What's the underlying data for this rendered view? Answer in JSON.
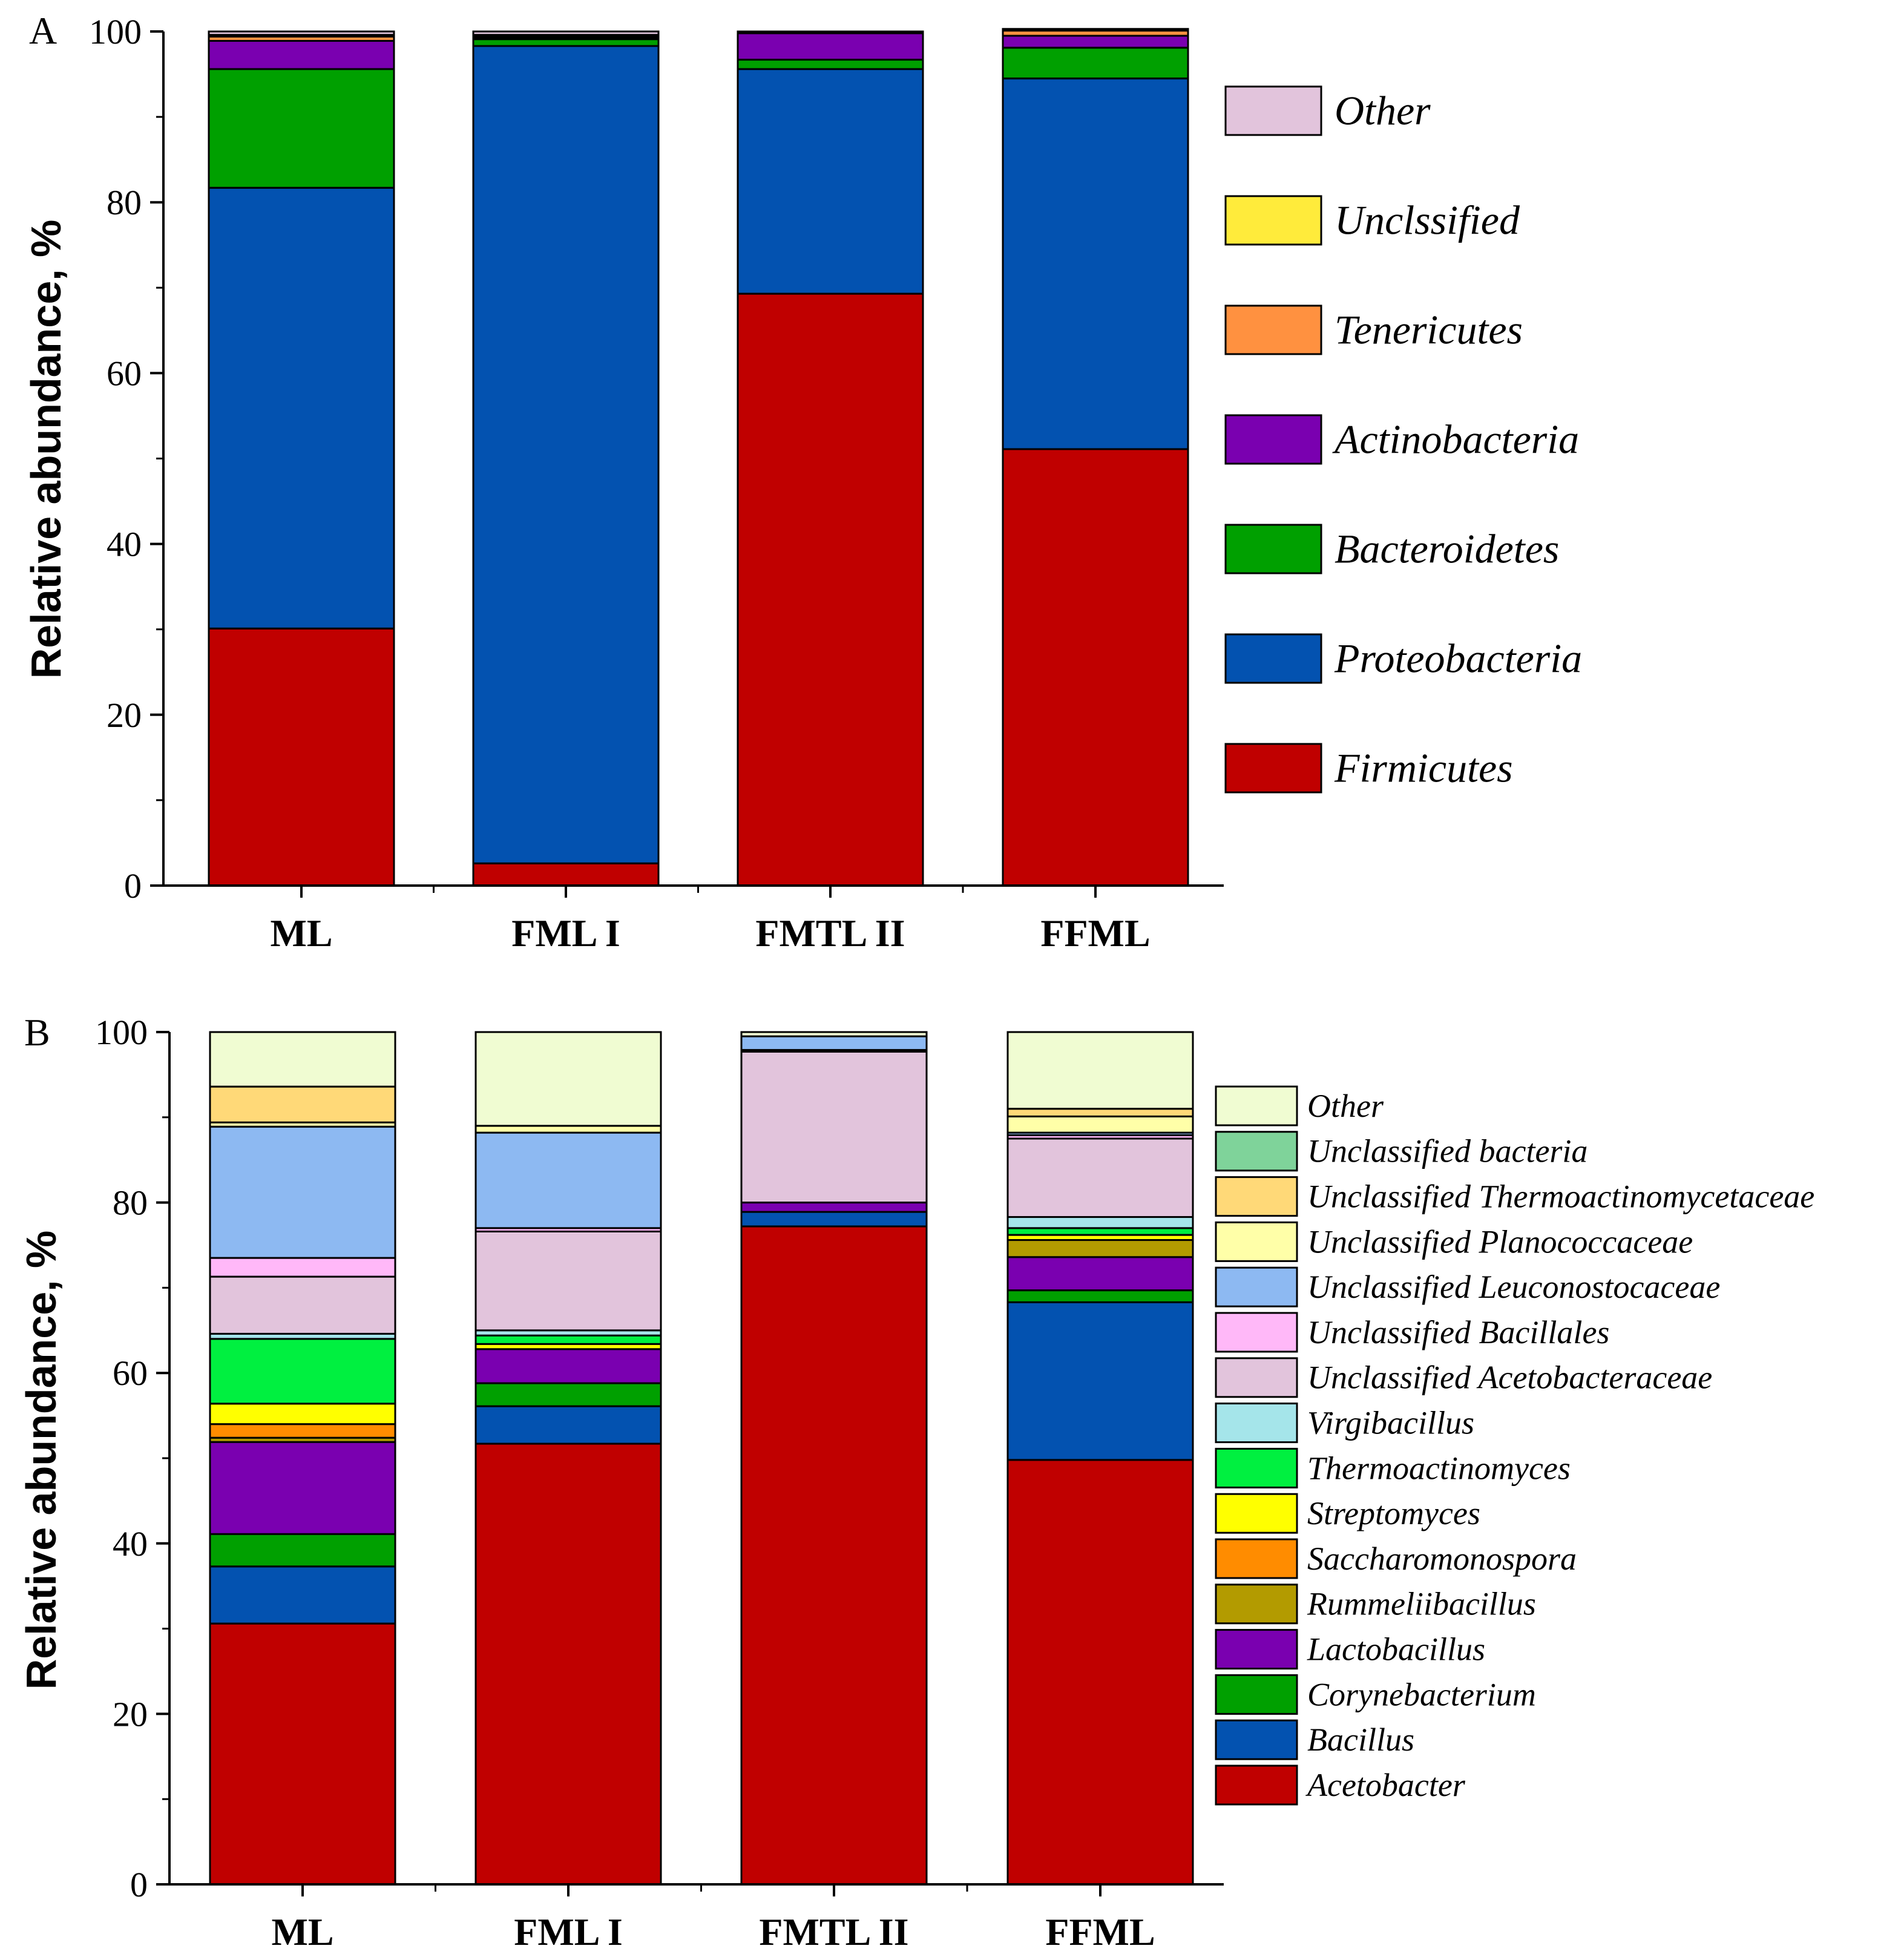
{
  "chart_data": [
    {
      "panel": "A",
      "type": "bar",
      "stacked": true,
      "title": "",
      "xlabel": "",
      "ylabel": "Relative abundance, %",
      "ylim": [
        0,
        100
      ],
      "yticks": [
        0,
        20,
        40,
        60,
        80,
        100
      ],
      "categories": [
        "ML",
        "FML I",
        "FMTL II",
        "FFML"
      ],
      "legend_order": [
        "Other",
        "Unclssified",
        "Tenericutes",
        "Actinobacteria",
        "Bacteroidetes",
        "Proteobacteria",
        "Firmicutes"
      ],
      "series": [
        {
          "name": "Firmicutes",
          "color": "#c00000",
          "values": [
            30.1,
            2.6,
            69.3,
            51.1
          ]
        },
        {
          "name": "Proteobacteria",
          "color": "#0352b0",
          "values": [
            51.6,
            95.7,
            26.3,
            43.4
          ]
        },
        {
          "name": "Bacteroidetes",
          "color": "#00a000",
          "values": [
            13.9,
            0.8,
            1.1,
            3.6
          ]
        },
        {
          "name": "Actinobacteria",
          "color": "#7a00b0",
          "values": [
            3.3,
            0.2,
            3.1,
            1.4
          ]
        },
        {
          "name": "Tenericutes",
          "color": "#ff9140",
          "values": [
            0.5,
            0.1,
            0.1,
            0.6
          ]
        },
        {
          "name": "Unclssified",
          "color": "#ffeb3b",
          "values": [
            0.2,
            0.2,
            0.1,
            0.2
          ]
        },
        {
          "name": "Other",
          "color": "#e2c4dc",
          "values": [
            0.4,
            0.4,
            0.0,
            0.0
          ]
        }
      ]
    },
    {
      "panel": "B",
      "type": "bar",
      "stacked": true,
      "title": "",
      "xlabel": "",
      "ylabel": "Relative abundance, %",
      "ylim": [
        0,
        100
      ],
      "yticks": [
        0,
        20,
        40,
        60,
        80,
        100
      ],
      "categories": [
        "ML",
        "FML I",
        "FMTL II",
        "FFML"
      ],
      "legend_order": [
        "Other",
        "Unclassified bacteria",
        "Unclassified Thermoactinomycetaceae",
        "Unclassified Planococcaceae",
        "Unclassified Leuconostocaceae",
        "Unclassified Bacillales",
        "Unclassified Acetobacteraceae",
        "Virgibacillus",
        "Thermoactinomyces",
        "Streptomyces",
        "Saccharomonospora",
        "Rummeliibacillus",
        "Lactobacillus",
        "Corynebacterium",
        "Bacillus",
        "Acetobacter"
      ],
      "series": [
        {
          "name": "Acetobacter",
          "color": "#c00000",
          "values": [
            30.6,
            51.7,
            77.2,
            49.8
          ]
        },
        {
          "name": "Bacillus",
          "color": "#0352b0",
          "values": [
            6.7,
            4.4,
            1.7,
            18.5
          ]
        },
        {
          "name": "Corynebacterium",
          "color": "#00a000",
          "values": [
            3.8,
            2.7,
            0.0,
            1.4
          ]
        },
        {
          "name": "Lactobacillus",
          "color": "#7a00b0",
          "values": [
            10.8,
            4.0,
            1.1,
            3.9
          ]
        },
        {
          "name": "Rummeliibacillus",
          "color": "#b39b00",
          "values": [
            0.5,
            0.0,
            0.0,
            2.0
          ]
        },
        {
          "name": "Saccharomonospora",
          "color": "#ff8c00",
          "values": [
            1.6,
            0.0,
            0.0,
            0.0
          ]
        },
        {
          "name": "Streptomyces",
          "color": "#ffff00",
          "values": [
            2.4,
            0.6,
            0.0,
            0.6
          ]
        },
        {
          "name": "Thermoactinomyces",
          "color": "#00f040",
          "values": [
            7.6,
            1.0,
            0.0,
            0.8
          ]
        },
        {
          "name": "Virgibacillus",
          "color": "#a5e5ea",
          "values": [
            0.6,
            0.6,
            0.0,
            1.3
          ]
        },
        {
          "name": "Unclassified Acetobacteraceae",
          "color": "#e2c4dc",
          "values": [
            6.7,
            11.6,
            17.7,
            9.2
          ]
        },
        {
          "name": "Unclassified Bacillales",
          "color": "#ffb8f8",
          "values": [
            2.2,
            0.4,
            0.2,
            0.4
          ]
        },
        {
          "name": "Unclassified Leuconostocaceae",
          "color": "#8db9f2",
          "values": [
            15.4,
            11.2,
            1.6,
            0.3
          ]
        },
        {
          "name": "Unclassified Planococcaceae",
          "color": "#ffffa8",
          "values": [
            0.5,
            0.8,
            0.0,
            1.9
          ]
        },
        {
          "name": "Unclassified Thermoactinomycetaceae",
          "color": "#ffd978",
          "values": [
            4.2,
            0.0,
            0.0,
            0.9
          ]
        },
        {
          "name": "Unclassified bacteria",
          "color": "#7fd39a",
          "values": [
            0.0,
            0.0,
            0.0,
            0.0
          ]
        },
        {
          "name": "Other",
          "color": "#f0fcd2",
          "values": [
            6.4,
            11.0,
            0.5,
            9.0
          ]
        }
      ]
    }
  ]
}
